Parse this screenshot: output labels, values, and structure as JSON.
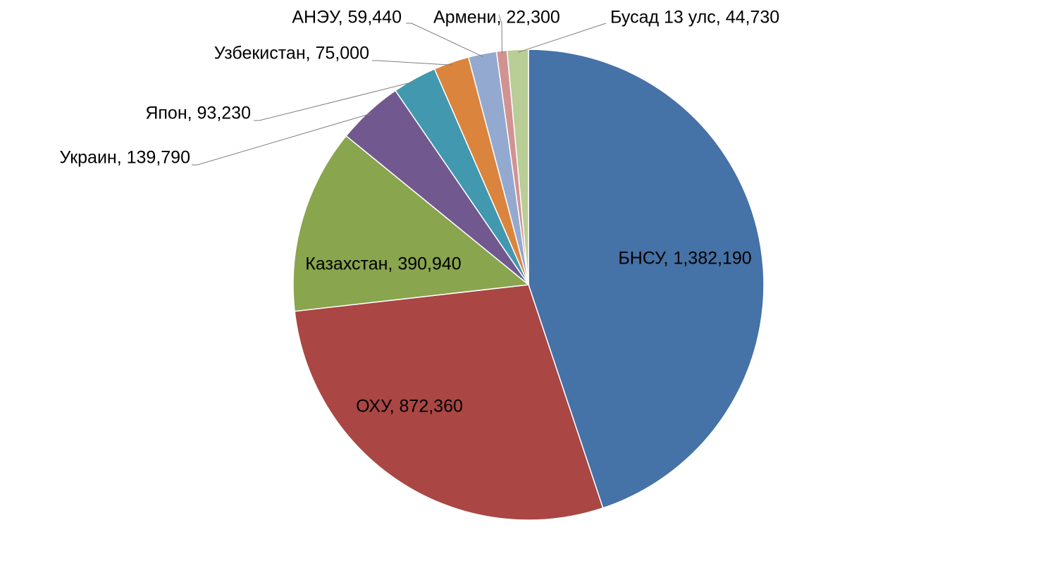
{
  "chart_data": {
    "type": "pie",
    "title": "",
    "start_angle_deg": 0,
    "direction": "clockwise",
    "legend": "none",
    "data_labels": "category-name-and-value",
    "slices": [
      {
        "name": "БНСУ",
        "value": 1382190,
        "label": "БНСУ, 1,382,190",
        "color": "#4572a7",
        "label_position": "inside"
      },
      {
        "name": "ОХУ",
        "value": 872360,
        "label": "ОХУ, 872,360",
        "color": "#aa4643",
        "label_position": "inside"
      },
      {
        "name": "Казахстан",
        "value": 390940,
        "label": "Казахстан, 390,940",
        "color": "#89a54e",
        "label_position": "inside"
      },
      {
        "name": "Украин",
        "value": 139790,
        "label": "Украин, 139,790",
        "color": "#71588f",
        "label_position": "outside"
      },
      {
        "name": "Япон",
        "value": 93230,
        "label": "Япон, 93,230",
        "color": "#4198af",
        "label_position": "outside"
      },
      {
        "name": "Узбекистан",
        "value": 75000,
        "label": "Узбекистан, 75,000",
        "color": "#db843d",
        "label_position": "outside"
      },
      {
        "name": "АНЭУ",
        "value": 59440,
        "label": "АНЭУ, 59,440",
        "color": "#93a9cf",
        "label_position": "outside"
      },
      {
        "name": "Армени",
        "value": 22300,
        "label": "Армени, 22,300",
        "color": "#d19392",
        "label_position": "outside"
      },
      {
        "name": "Бусад 13 улс",
        "value": 44730,
        "label": "Бусад 13 улс, 44,730",
        "color": "#b9cd96",
        "label_position": "outside"
      }
    ]
  }
}
